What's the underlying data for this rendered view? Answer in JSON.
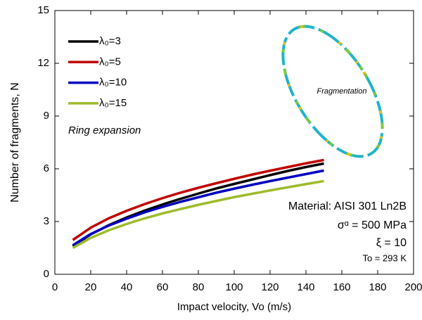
{
  "chart_data": {
    "type": "line",
    "x_label": "Impact velocity, Vo (m/s)",
    "y_label": "Number of fragments, N",
    "x": [
      10,
      20,
      30,
      40,
      50,
      60,
      70,
      80,
      90,
      100,
      110,
      120,
      130,
      140,
      150
    ],
    "series": [
      {
        "name": "λ₀=3",
        "color": "#000000",
        "values": [
          1.6,
          2.27,
          2.79,
          3.23,
          3.62,
          3.97,
          4.29,
          4.59,
          4.88,
          5.14,
          5.39,
          5.64,
          5.88,
          6.1,
          6.3
        ]
      },
      {
        "name": "λ₀=5",
        "color": "#c00000",
        "values": [
          1.95,
          2.65,
          3.18,
          3.61,
          3.99,
          4.33,
          4.64,
          4.92,
          5.18,
          5.43,
          5.67,
          5.89,
          6.1,
          6.31,
          6.5
        ]
      },
      {
        "name": "λ₀=10",
        "color": "#0000c0",
        "values": [
          1.65,
          2.29,
          2.77,
          3.16,
          3.52,
          3.83,
          4.12,
          4.38,
          4.64,
          4.87,
          5.09,
          5.3,
          5.5,
          5.7,
          5.9
        ]
      },
      {
        "name": "λ₀=15",
        "color": "#9dbb2c",
        "values": [
          1.5,
          2.07,
          2.5,
          2.86,
          3.18,
          3.46,
          3.71,
          3.95,
          4.17,
          4.39,
          4.58,
          4.77,
          4.95,
          5.13,
          5.3
        ]
      }
    ],
    "xlim": [
      0,
      200
    ],
    "xticks": [
      0,
      20,
      40,
      60,
      80,
      100,
      120,
      140,
      160,
      180,
      200
    ],
    "ylim": [
      0,
      15
    ],
    "yticks": [
      0,
      3,
      6,
      9,
      12,
      15
    ],
    "legend": "upper left",
    "annotations": [
      "Ring expansion",
      "Fragmentation",
      "Material: AISI 301 Ln2B",
      "σᵅ = 500 MPa",
      "ξ = 10",
      "To = 293 K"
    ]
  }
}
